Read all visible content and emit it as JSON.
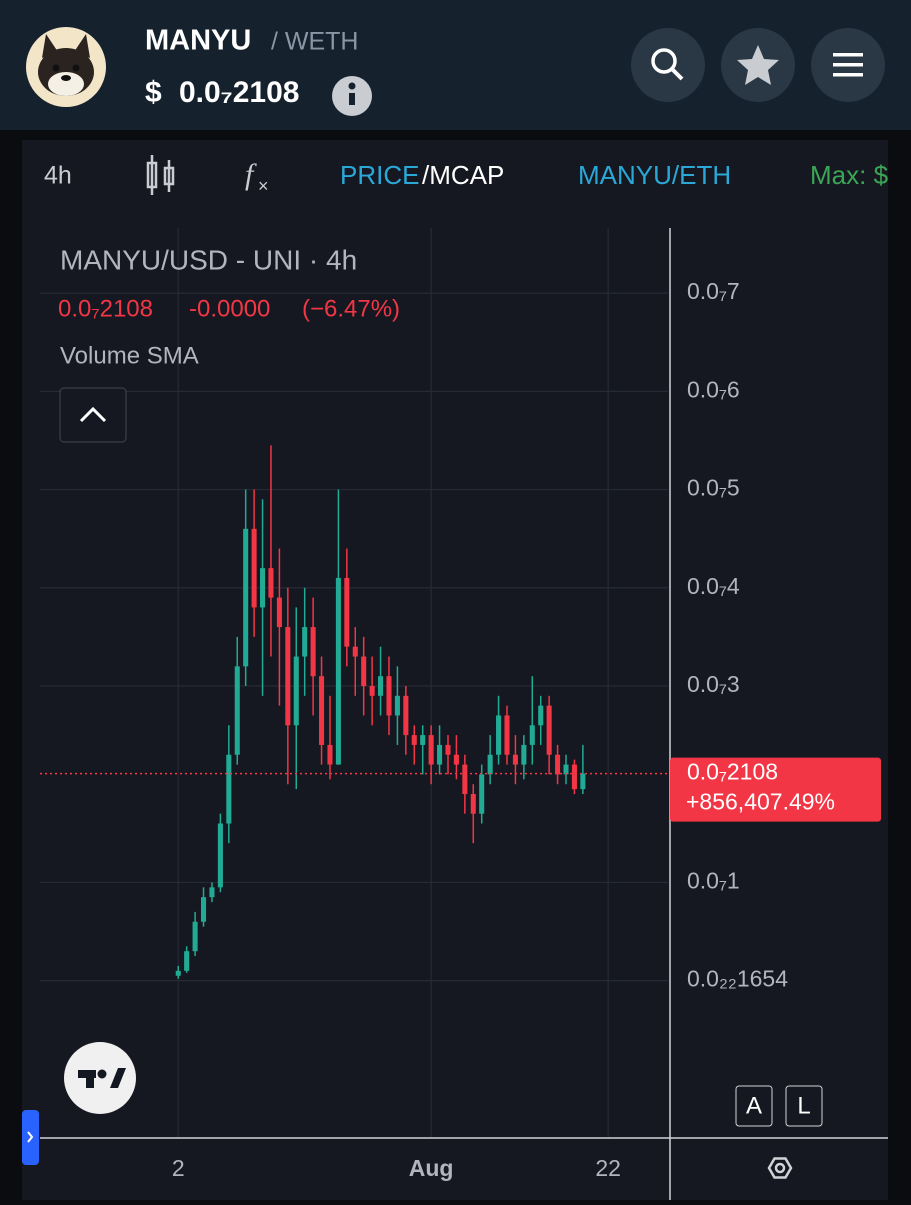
{
  "header": {
    "symbol": "MANYU",
    "quote": "/ WETH",
    "currency": "$",
    "price": "0.0₇2108"
  },
  "toolbar": {
    "interval": "4h",
    "price": "PRICE",
    "mcap": "/MCAP",
    "pair": "MANYU/ETH",
    "max": "Max: $"
  },
  "legend": {
    "title": "MANYU/USD - UNI · 4h",
    "price": "0.0₇2108",
    "change": "-0.0000",
    "change_pct": "(−6.47%)",
    "indicator": "Volume SMA"
  },
  "buttons": {
    "auto": "A",
    "log": "L"
  },
  "chart_data": {
    "type": "candlestick",
    "up_color": "#22ab94",
    "down_color": "#f23645",
    "x": [
      0,
      1,
      2,
      3,
      4,
      5,
      6,
      7,
      8,
      9,
      10,
      11,
      12,
      13,
      14,
      15,
      16,
      17,
      18,
      19,
      20,
      21,
      22,
      23,
      24,
      25,
      26,
      27,
      28,
      29,
      30,
      31,
      32,
      33,
      34,
      35,
      36,
      37,
      38,
      39,
      40,
      41,
      42,
      43,
      44,
      45,
      46,
      47,
      48
    ],
    "open": [
      5e-10,
      1e-09,
      3e-09,
      6e-09,
      8.5e-09,
      9.5e-09,
      1.6e-08,
      2.3e-08,
      3.2e-08,
      4.6e-08,
      3.8e-08,
      4.2e-08,
      3.9e-08,
      3.6e-08,
      2.6e-08,
      3.3e-08,
      3.6e-08,
      3.1e-08,
      2.4e-08,
      2.2e-08,
      4.1e-08,
      3.4e-08,
      3.3e-08,
      3e-08,
      2.9e-08,
      3.1e-08,
      2.7e-08,
      2.9e-08,
      2.5e-08,
      2.4e-08,
      2.5e-08,
      2.2e-08,
      2.4e-08,
      2.3e-08,
      2.2e-08,
      1.9e-08,
      1.7e-08,
      2.1e-08,
      2.3e-08,
      2.7e-08,
      2.3e-08,
      2.2e-08,
      2.4e-08,
      2.6e-08,
      2.8e-08,
      2.3e-08,
      2.1e-08,
      2.2e-08,
      1.95e-08
    ],
    "high": [
      1.5e-09,
      3.5e-09,
      7e-09,
      9.5e-09,
      1e-08,
      1.7e-08,
      2.6e-08,
      3.5e-08,
      5e-08,
      5e-08,
      4.9e-08,
      5.45e-08,
      4.4e-08,
      4e-08,
      3.8e-08,
      4e-08,
      3.9e-08,
      3.3e-08,
      2.9e-08,
      5e-08,
      4.4e-08,
      3.6e-08,
      3.5e-08,
      3.3e-08,
      3.4e-08,
      3.3e-08,
      3.2e-08,
      3e-08,
      2.6e-08,
      2.6e-08,
      2.6e-08,
      2.6e-08,
      2.5e-08,
      2.5e-08,
      2.3e-08,
      2e-08,
      2.2e-08,
      2.5e-08,
      2.9e-08,
      2.8e-08,
      2.5e-08,
      2.5e-08,
      3.1e-08,
      2.9e-08,
      2.9e-08,
      2.4e-08,
      2.3e-08,
      2.25e-08,
      2.4e-08
    ],
    "low": [
      2e-10,
      8e-10,
      2.5e-09,
      5.5e-09,
      8e-09,
      9e-09,
      1.4e-08,
      2.2e-08,
      3e-08,
      3.5e-08,
      2.9e-08,
      3.3e-08,
      2.8e-08,
      2e-08,
      1.95e-08,
      2.9e-08,
      2.7e-08,
      2.2e-08,
      2.05e-08,
      2.2e-08,
      3.2e-08,
      2.9e-08,
      2.7e-08,
      2.6e-08,
      2.7e-08,
      2.5e-08,
      2.4e-08,
      2.3e-08,
      2.2e-08,
      2.1e-08,
      2e-08,
      2.1e-08,
      2.1e-08,
      2.05e-08,
      1.7e-08,
      1.4e-08,
      1.6e-08,
      2e-08,
      2.2e-08,
      2.2e-08,
      2e-08,
      2.05e-08,
      2.2e-08,
      2.4e-08,
      2.1e-08,
      2e-08,
      2e-08,
      1.9e-08,
      1.9e-08
    ],
    "close": [
      1e-09,
      3e-09,
      6e-09,
      8.5e-09,
      9.5e-09,
      1.6e-08,
      2.3e-08,
      3.2e-08,
      4.6e-08,
      3.8e-08,
      4.2e-08,
      3.9e-08,
      3.6e-08,
      2.6e-08,
      3.3e-08,
      3.6e-08,
      3.1e-08,
      2.4e-08,
      2.2e-08,
      4.1e-08,
      3.4e-08,
      3.3e-08,
      3e-08,
      2.9e-08,
      3.1e-08,
      2.7e-08,
      2.9e-08,
      2.5e-08,
      2.4e-08,
      2.5e-08,
      2.2e-08,
      2.4e-08,
      2.3e-08,
      2.2e-08,
      1.9e-08,
      1.7e-08,
      2.1e-08,
      2.3e-08,
      2.7e-08,
      2.3e-08,
      2.2e-08,
      2.4e-08,
      2.6e-08,
      2.8e-08,
      2.3e-08,
      2.1e-08,
      2.2e-08,
      1.95e-08,
      2.108e-08
    ],
    "xlim": [
      -16.4,
      58.1
    ],
    "ylim": [
      -1.602e-08,
      7.663e-08
    ],
    "xticks": [
      {
        "value": 0,
        "label": "2"
      },
      {
        "value": 30,
        "label": "Aug"
      },
      {
        "value": 51,
        "label": "22"
      }
    ],
    "yticks": [
      {
        "value": 1.654e-23,
        "label": "0.0₂₂1654"
      },
      {
        "value": 1e-08,
        "label": "0.0₇1"
      },
      {
        "value": 3e-08,
        "label": "0.0₇3"
      },
      {
        "value": 4e-08,
        "label": "0.0₇4"
      },
      {
        "value": 5e-08,
        "label": "0.0₇5"
      },
      {
        "value": 6e-08,
        "label": "0.0₇6"
      },
      {
        "value": 7e-08,
        "label": "0.0₇7"
      }
    ],
    "grid": true,
    "price_line": {
      "value": 2.108e-08,
      "label": "0.0₇2108",
      "change": "+856,407.49%",
      "color": "#f23645"
    }
  }
}
